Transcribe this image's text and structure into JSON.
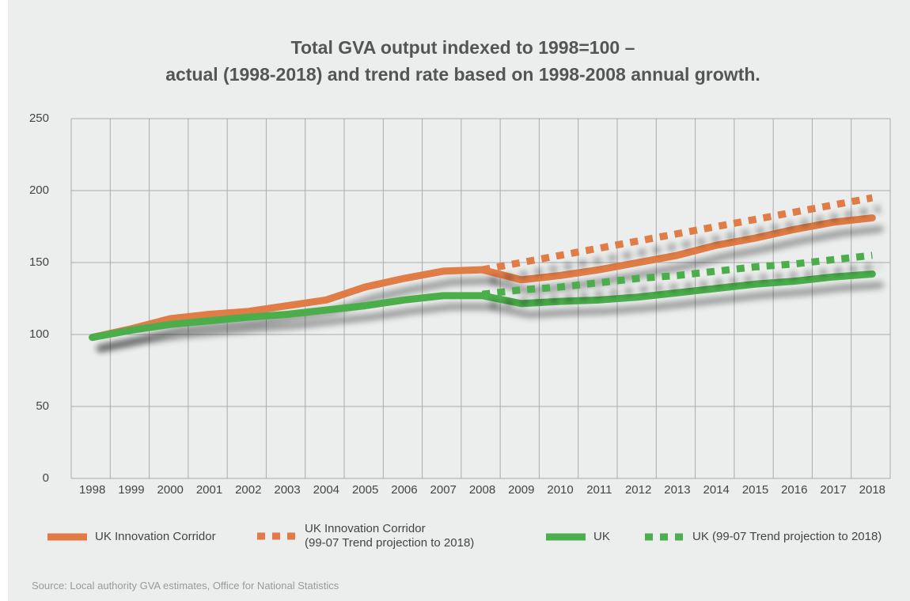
{
  "chart_data": {
    "type": "line",
    "title": [
      "Total GVA output indexed to 1998=100 –",
      "actual (1998-2018) and trend rate based on 1998-2008 annual growth."
    ],
    "categories": [
      "1998",
      "1999",
      "2000",
      "2001",
      "2002",
      "2003",
      "2004",
      "2005",
      "2006",
      "2007",
      "2008",
      "2009",
      "2010",
      "2011",
      "2012",
      "2013",
      "2014",
      "2015",
      "2016",
      "2017",
      "2018"
    ],
    "series": [
      {
        "name": "UK Innovation Corridor",
        "color": "#e07b45",
        "dashed": false,
        "values": [
          98,
          104,
          111,
          114,
          116,
          120,
          124,
          133,
          139,
          144,
          145,
          138,
          141,
          145,
          150,
          155,
          162,
          167,
          173,
          178,
          181
        ]
      },
      {
        "name": "UK Innovation Corridor\n(99-07 Trend projection to 2018)",
        "color": "#e07b45",
        "dashed": true,
        "values": [
          null,
          null,
          null,
          null,
          null,
          null,
          null,
          null,
          null,
          null,
          145,
          150,
          155,
          160,
          165,
          170,
          175,
          180,
          185,
          190,
          195
        ]
      },
      {
        "name": "UK",
        "color": "#4cae4c",
        "dashed": false,
        "values": [
          98,
          103,
          107,
          109.5,
          112,
          114,
          117,
          120,
          124,
          127,
          127,
          121.5,
          123,
          124,
          126,
          129,
          132,
          135,
          137,
          140,
          142
        ]
      },
      {
        "name": "UK (99-07 Trend projection to 2018)",
        "color": "#4cae4c",
        "dashed": true,
        "values": [
          null,
          null,
          null,
          null,
          null,
          null,
          null,
          null,
          null,
          null,
          128,
          131,
          133,
          136,
          139,
          141,
          144,
          147,
          149,
          152,
          155
        ]
      }
    ],
    "ylim": [
      0,
      250
    ],
    "yticks": [
      0,
      50,
      100,
      150,
      200,
      250
    ],
    "grid": true,
    "source": "Source: Local authority GVA estimates, Office for National Statistics"
  }
}
